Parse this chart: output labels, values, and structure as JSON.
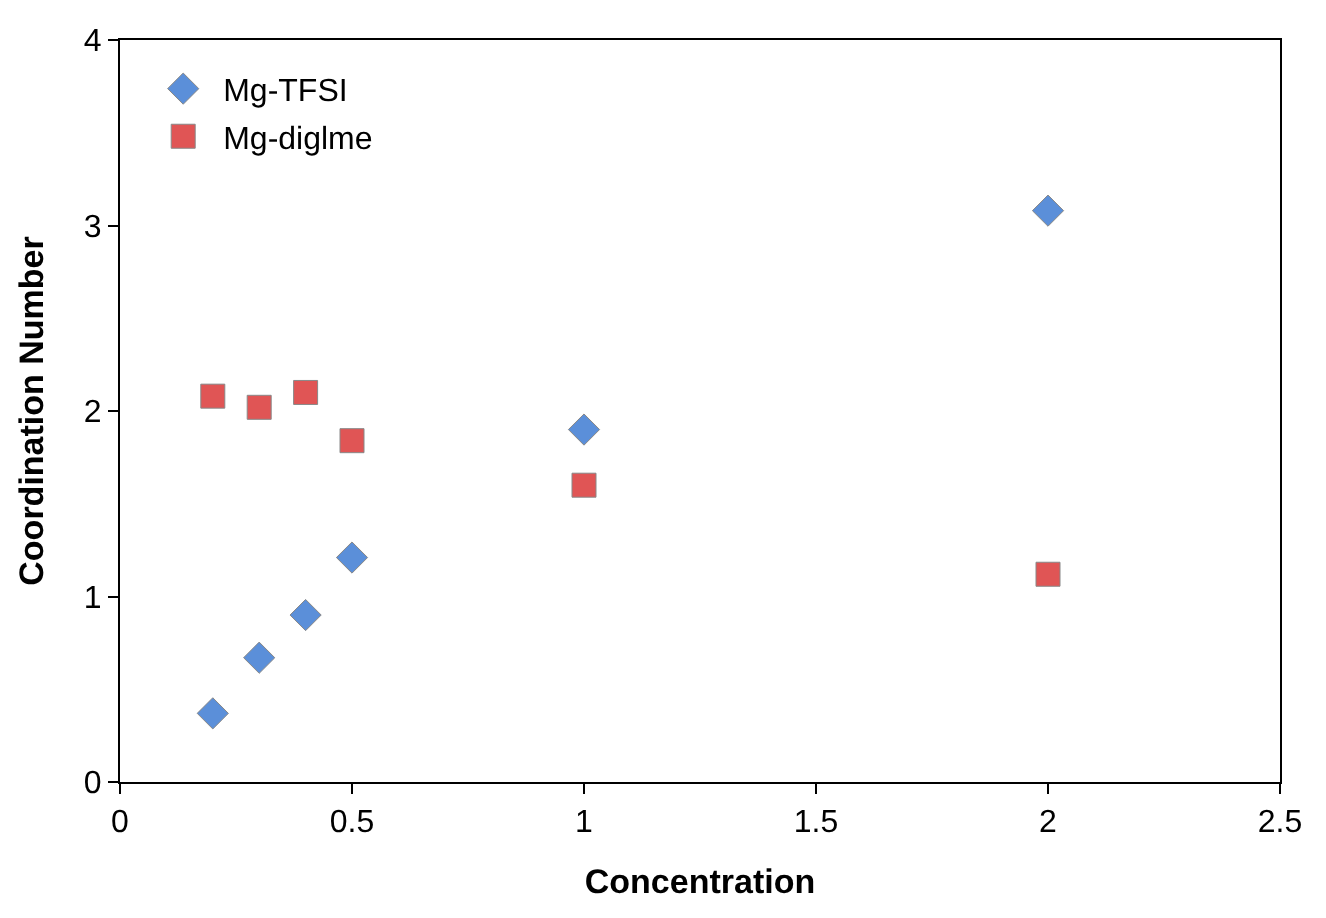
{
  "chart_data": {
    "type": "scatter",
    "xlabel": "Concentration",
    "ylabel": "Coordination Number",
    "x": [
      0.2,
      0.3,
      0.4,
      0.5,
      1,
      2
    ],
    "series": [
      {
        "name": "Mg-TFSI",
        "color": "#5b8fd9",
        "marker": "diamond",
        "values": [
          0.37,
          0.67,
          0.9,
          1.21,
          1.9,
          3.08
        ]
      },
      {
        "name": "Mg-diglme",
        "color": "#e05555",
        "marker": "square",
        "values": [
          2.08,
          2.02,
          2.1,
          1.84,
          1.6,
          1.12
        ]
      }
    ],
    "xlim": [
      0,
      2.5
    ],
    "xticks": [
      0,
      {
        "value": 0.5,
        "label": "0.5"
      },
      1,
      {
        "value": 1.5,
        "label": "1.5"
      },
      2,
      {
        "value": 2.5,
        "label": "2.5"
      }
    ],
    "ylim": [
      0,
      4
    ],
    "yticks": [
      0,
      1,
      2,
      3,
      4
    ],
    "grid": false,
    "legend": "top left"
  }
}
